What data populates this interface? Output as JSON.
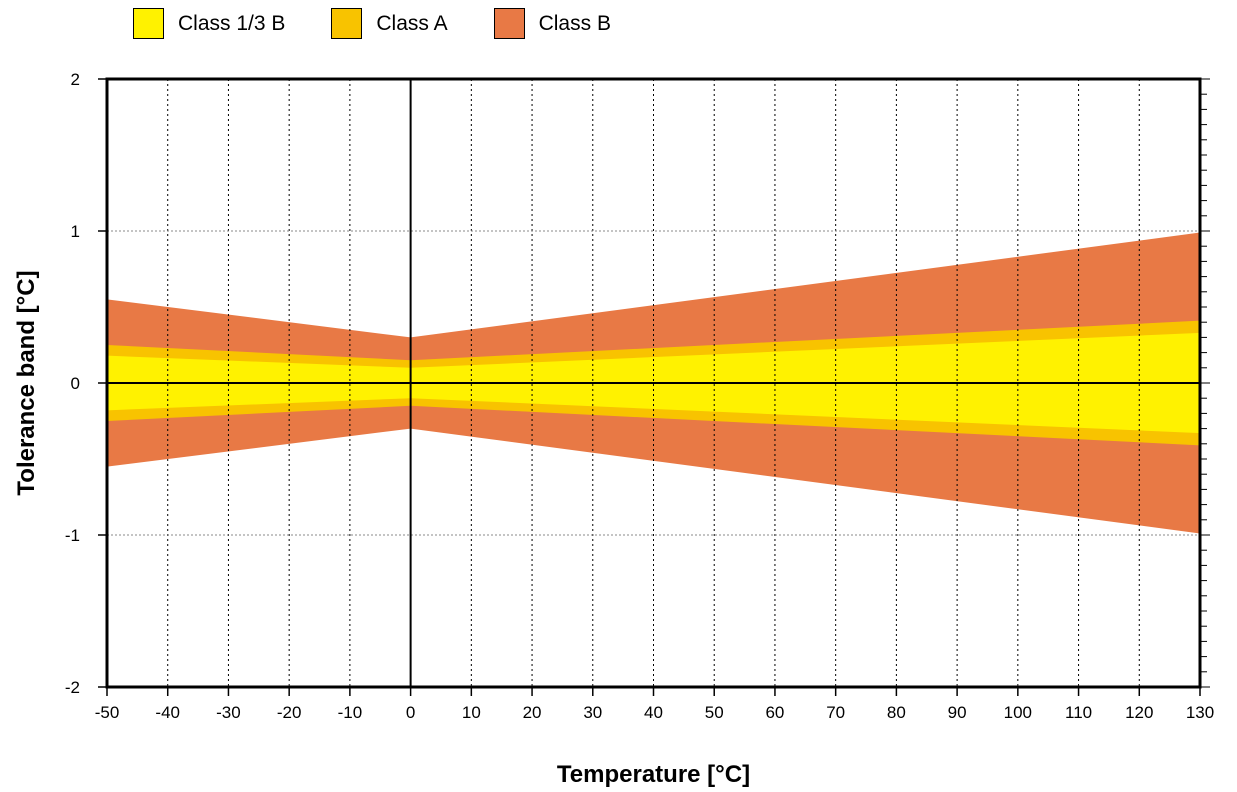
{
  "chart_data": {
    "type": "area",
    "xlabel": "Temperature [°C]",
    "ylabel": "Tolerance band [°C]",
    "xlim": [
      -50,
      130
    ],
    "ylim": [
      -2,
      2
    ],
    "x_ticks": [
      -50,
      -40,
      -30,
      -20,
      -10,
      0,
      10,
      20,
      30,
      40,
      50,
      60,
      70,
      80,
      90,
      100,
      110,
      120,
      130
    ],
    "y_ticks": [
      -2,
      -1,
      0,
      1,
      2
    ],
    "x_tick_labels": [
      "-50",
      "-40",
      "-30",
      "-20",
      "-10",
      "0",
      "10",
      "20",
      "30",
      "40",
      "50",
      "60",
      "70",
      "80",
      "90",
      "100",
      "110",
      "120",
      "130"
    ],
    "y_tick_labels": [
      "-2",
      "-1",
      "0",
      "1",
      "2"
    ],
    "y_minor_step": 0.1,
    "grid": true,
    "legend_position": "top",
    "series": [
      {
        "name": "Class B",
        "color": "#E87945",
        "x": [
          -50,
          0,
          130
        ],
        "upper": [
          0.55,
          0.3,
          0.99
        ],
        "lower": [
          -0.55,
          -0.3,
          -0.99
        ]
      },
      {
        "name": "Class A",
        "color": "#F8C300",
        "x": [
          -50,
          0,
          130
        ],
        "upper": [
          0.25,
          0.15,
          0.41
        ],
        "lower": [
          -0.25,
          -0.15,
          -0.41
        ]
      },
      {
        "name": "Class 1/3 B",
        "color": "#FFF200",
        "x": [
          -50,
          0,
          130
        ],
        "upper": [
          0.18,
          0.1,
          0.33
        ],
        "lower": [
          -0.18,
          -0.1,
          -0.33
        ]
      }
    ],
    "legend": [
      {
        "label": "Class 1/3 B",
        "color": "#FFF200"
      },
      {
        "label": "Class A",
        "color": "#F8C300"
      },
      {
        "label": "Class B",
        "color": "#E87945"
      }
    ]
  }
}
